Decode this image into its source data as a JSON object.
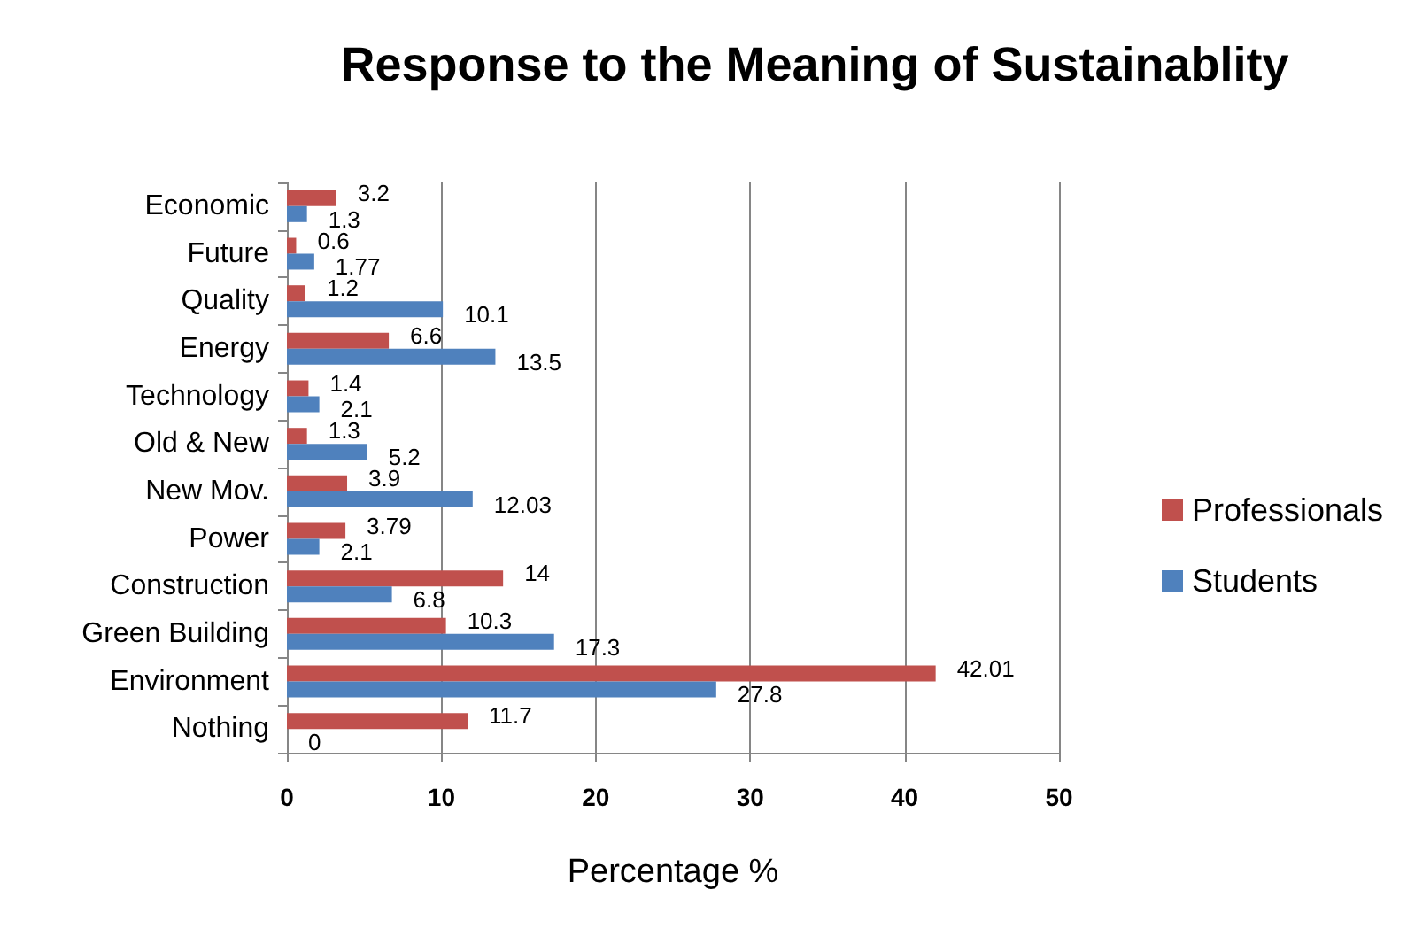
{
  "chart_data": {
    "type": "bar",
    "orientation": "horizontal",
    "title": "Response to the Meaning of Sustainablity",
    "xlabel": "Percentage %",
    "categories": [
      "Economic",
      "Future",
      "Quality",
      "Energy",
      "Technology",
      "Old & New",
      "New Mov.",
      "Power",
      "Construction",
      "Green Building",
      "Environment",
      "Nothing"
    ],
    "series": [
      {
        "name": "Professionals",
        "color": "#c0504d",
        "values": [
          3.2,
          0.6,
          1.2,
          6.6,
          1.4,
          1.3,
          3.9,
          3.79,
          14,
          10.3,
          42.01,
          11.7
        ]
      },
      {
        "name": "Students",
        "color": "#4f81bd",
        "values": [
          1.3,
          1.77,
          10.1,
          13.5,
          2.1,
          5.2,
          12.03,
          2.1,
          6.8,
          17.3,
          27.8,
          0
        ]
      }
    ],
    "xlim": [
      0,
      50
    ],
    "xticks": [
      0,
      10,
      20,
      30,
      40,
      50
    ],
    "grid": "x",
    "legend": "right",
    "data_labels": true
  }
}
